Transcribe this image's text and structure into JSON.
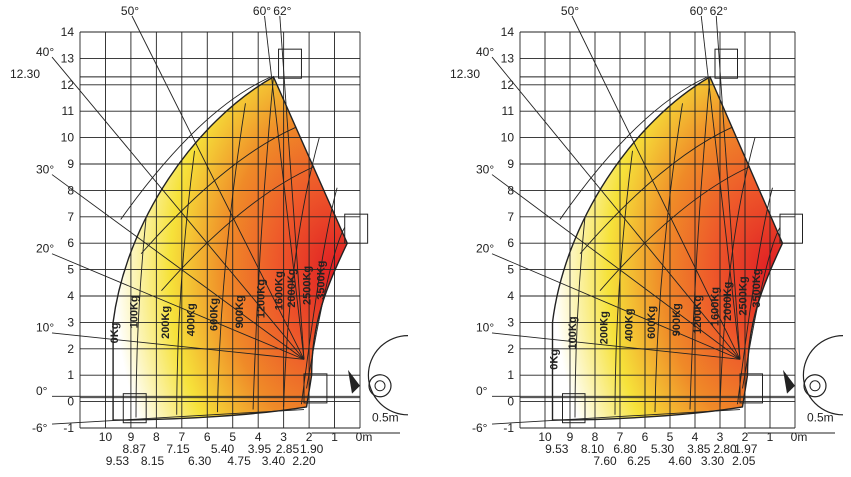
{
  "chart_data": [
    {
      "type": "load chart",
      "y_ticks": [
        "14",
        "13",
        "12",
        "11",
        "10",
        "9",
        "8",
        "7",
        "6",
        "5",
        "4",
        "3",
        "2",
        "1",
        "0",
        "-1"
      ],
      "x_ticks": [
        "10",
        "9",
        "8",
        "7",
        "6",
        "5",
        "4",
        "3",
        "2",
        "1",
        "0m"
      ],
      "reach_values_row1": [
        "8.87",
        "7.15",
        "5.40",
        "3.95",
        "2.85",
        "1.90"
      ],
      "reach_values_row2": [
        "9.53",
        "8.15",
        "6.30",
        "4.75",
        "3.40",
        "2.20"
      ],
      "angle_labels": [
        "50°",
        "60°",
        "62°",
        "40°",
        "30°",
        "20°",
        "10°",
        "0°",
        "-6°"
      ],
      "max_height_label": "12.30",
      "capacity_labels": [
        "0Kg",
        "100Kg",
        "200Kg",
        "400Kg",
        "600Kg",
        "900Kg",
        "1200Kg",
        "1600Kg",
        "2000Kg",
        "2500Kg",
        "3500Kg"
      ],
      "outrigger_label": "0.5m"
    },
    {
      "type": "load chart",
      "y_ticks": [
        "14",
        "13",
        "12",
        "11",
        "10",
        "9",
        "8",
        "7",
        "6",
        "5",
        "4",
        "3",
        "2",
        "1",
        "0",
        "-1"
      ],
      "x_ticks": [
        "10",
        "9",
        "8",
        "7",
        "6",
        "5",
        "4",
        "3",
        "2",
        "1",
        "0m"
      ],
      "reach_values_row1": [
        "9.53",
        "8.10",
        "6.80",
        "5.30",
        "3.85",
        "2.80",
        "1.97"
      ],
      "reach_values_row2": [
        "7.60",
        "6.25",
        "4.60",
        "3.30",
        "2.05"
      ],
      "angle_labels": [
        "50°",
        "60°",
        "62°",
        "40°",
        "30°",
        "20°",
        "10°",
        "0°",
        "-6°"
      ],
      "max_height_label": "12.30",
      "capacity_labels": [
        "0Kg",
        "100Kg",
        "200Kg",
        "400Kg",
        "600Kg",
        "900Kg",
        "1200Kg",
        "1600Kg",
        "2000Kg",
        "2500Kg",
        "3500Kg"
      ],
      "outrigger_label": "0.5m"
    }
  ],
  "colors": {
    "low": "#ffffff",
    "mid": "#f6e23a",
    "high": "#ef8a28",
    "max": "#e01e24"
  }
}
